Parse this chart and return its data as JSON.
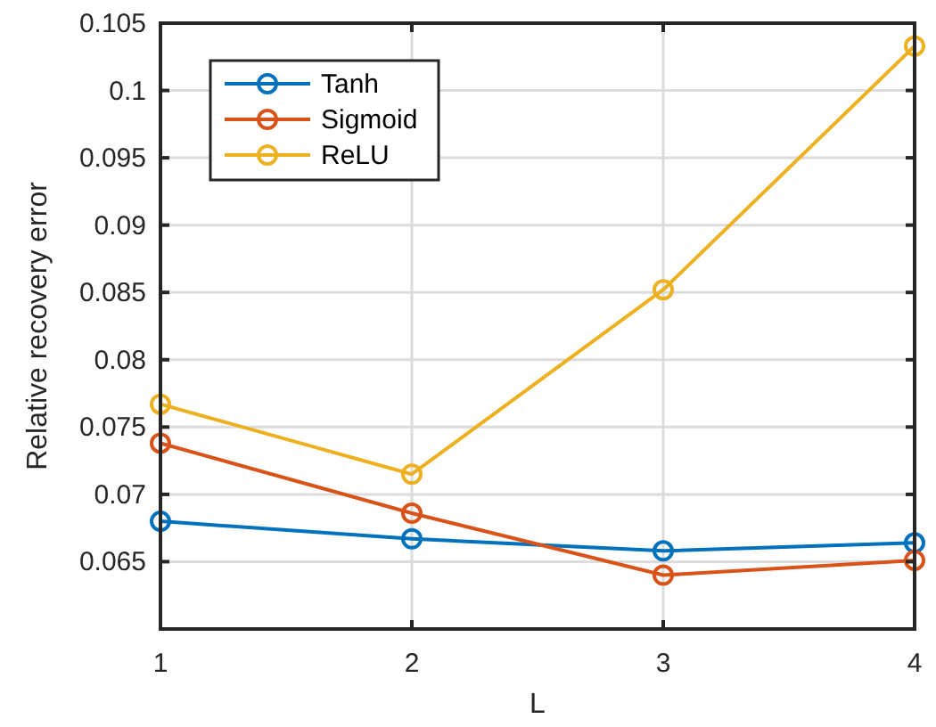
{
  "chart_data": {
    "type": "line",
    "xlabel": "L",
    "ylabel": "Relative recovery error",
    "x": [
      1,
      2,
      3,
      4
    ],
    "series": [
      {
        "name": "Tanh",
        "color": "#0072bd",
        "values": [
          0.068,
          0.0667,
          0.0658,
          0.0664
        ]
      },
      {
        "name": "Sigmoid",
        "color": "#d95319",
        "values": [
          0.0738,
          0.0686,
          0.064,
          0.0651
        ]
      },
      {
        "name": "ReLU",
        "color": "#edb120",
        "values": [
          0.0767,
          0.0715,
          0.0852,
          0.1033
        ]
      }
    ],
    "xlim": [
      1,
      4
    ],
    "xticks": [
      1,
      2,
      3,
      4
    ],
    "ylim": [
      0.06,
      0.105
    ],
    "yticks": [
      0.065,
      0.07,
      0.075,
      0.08,
      0.085,
      0.09,
      0.095,
      0.1,
      0.105
    ],
    "grid": true,
    "legend": "top left",
    "marker": "circle",
    "line_style": "solid"
  }
}
